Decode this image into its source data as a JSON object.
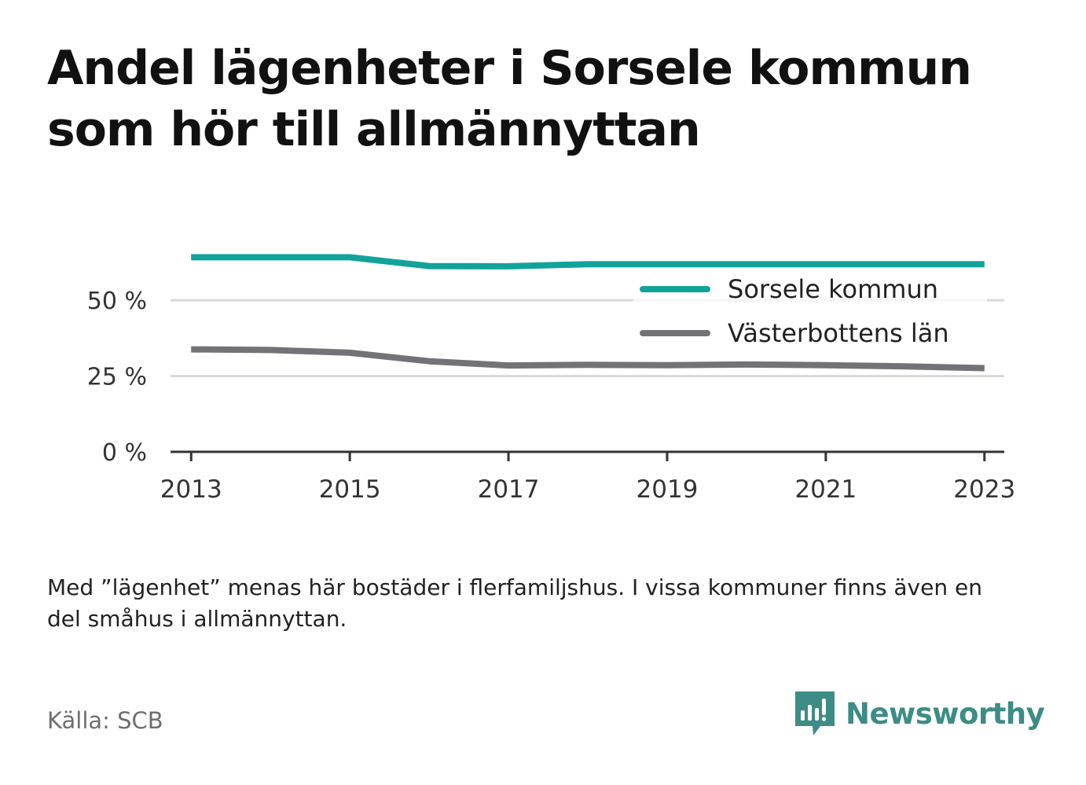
{
  "title": "Andel lägenheter i Sorsele kommun som hör till allmännyttan",
  "note": "Med ”lägenhet” menas här bostäder i flerfamiljshus. I vissa kommuner finns även en del småhus i allmännyttan.",
  "source": "Källa: SCB",
  "brand": {
    "name": "Newsworthy",
    "icon": "newsworthy-logo-icon",
    "color": "#3d8c85"
  },
  "chart_data": {
    "type": "line",
    "x": [
      2013,
      2014,
      2015,
      2016,
      2017,
      2018,
      2019,
      2020,
      2021,
      2022,
      2023
    ],
    "series": [
      {
        "name": "Sorsele kommun",
        "color": "#11a39b",
        "values": [
          64.2,
          64.2,
          64.2,
          61.3,
          61.2,
          61.9,
          61.9,
          61.9,
          61.9,
          61.9,
          61.9
        ]
      },
      {
        "name": "Västerbottens län",
        "color": "#737279",
        "values": [
          33.8,
          33.6,
          32.7,
          29.9,
          28.5,
          28.7,
          28.6,
          28.8,
          28.6,
          28.2,
          27.6
        ]
      }
    ],
    "yticks": [
      0,
      25,
      50
    ],
    "ytick_labels": [
      "0 %",
      "25 %",
      "50 %"
    ],
    "xticks": [
      2013,
      2015,
      2017,
      2019,
      2021,
      2023
    ],
    "xtick_labels": [
      "2013",
      "2015",
      "2017",
      "2019",
      "2021",
      "2023"
    ],
    "ylim": [
      0,
      70
    ],
    "xlim": [
      2012.74,
      2023.25
    ],
    "grid": true,
    "legend": "top-right",
    "xlabel": "",
    "ylabel": ""
  }
}
